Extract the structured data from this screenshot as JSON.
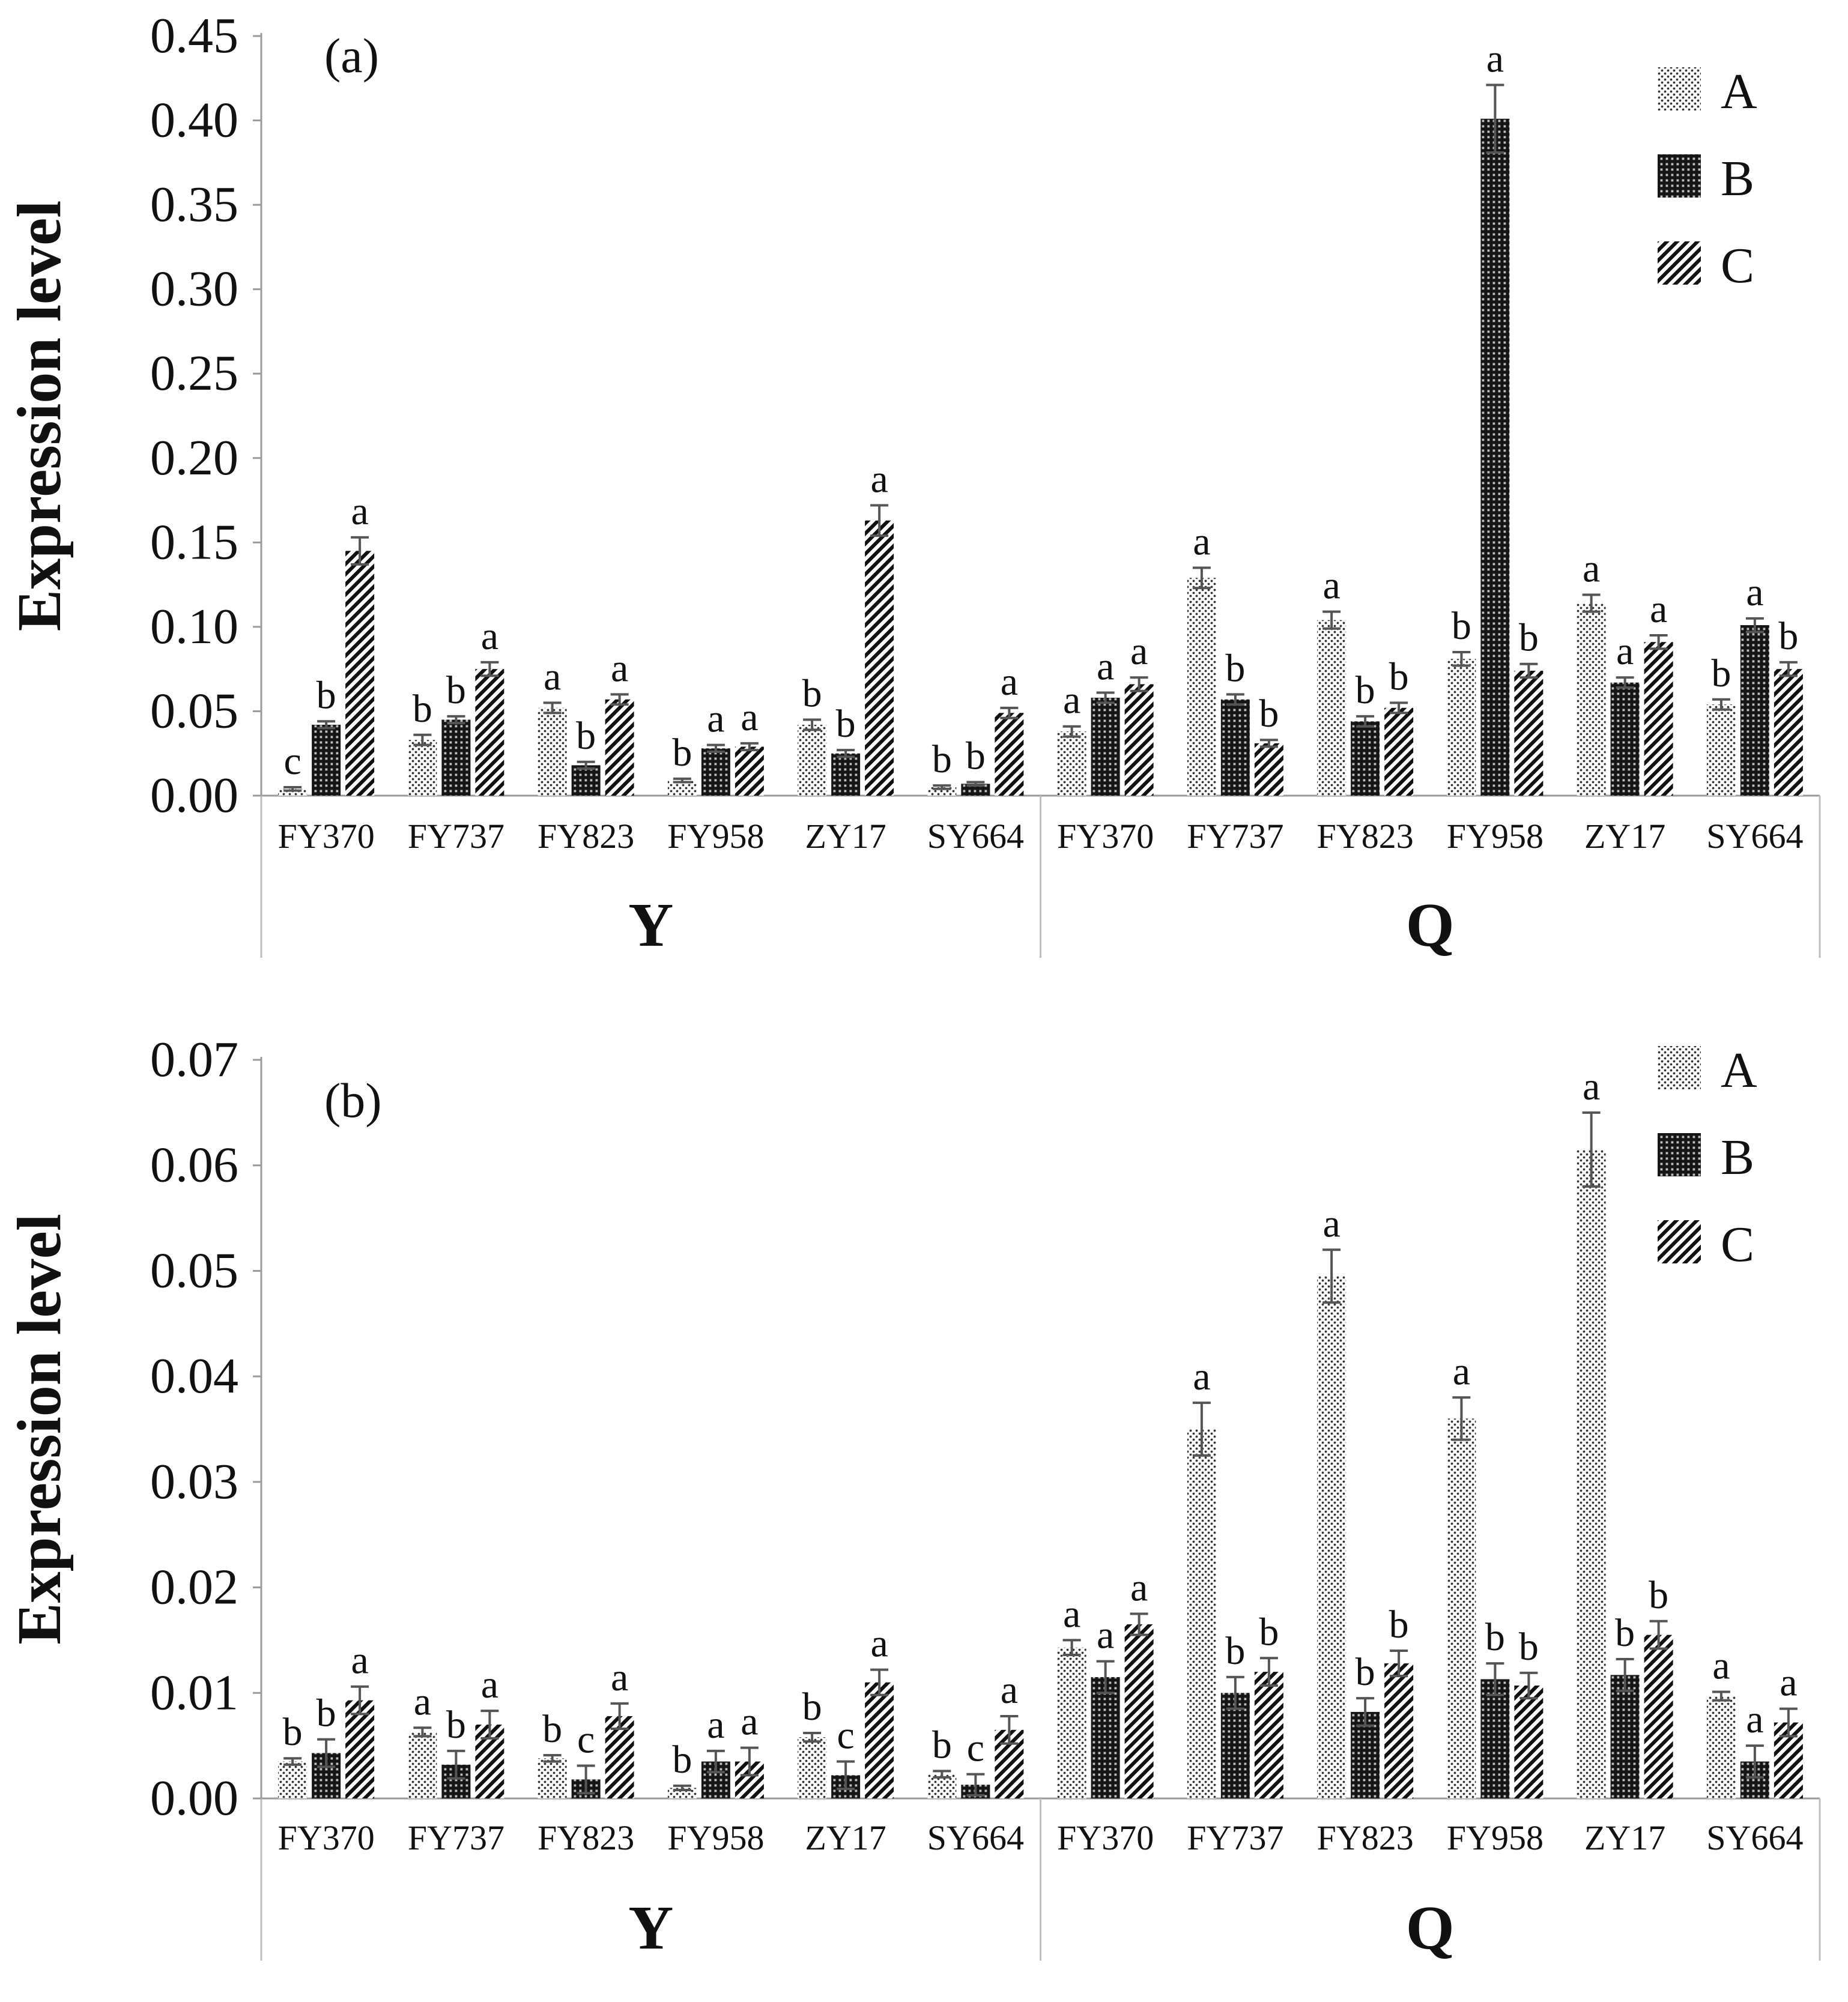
{
  "chart_data": [
    {
      "type": "bar",
      "panel_label": "(a)",
      "ylabel": "Expression level",
      "ylim": [
        0,
        0.45
      ],
      "yticks": [
        "0.00",
        "0.05",
        "0.10",
        "0.15",
        "0.20",
        "0.25",
        "0.30",
        "0.35",
        "0.40",
        "0.45"
      ],
      "groups": [
        "Y",
        "Q"
      ],
      "categories": [
        "FY370",
        "FY737",
        "FY823",
        "FY958",
        "ZY17",
        "SY664",
        "FY370",
        "FY737",
        "FY823",
        "FY958",
        "ZY17",
        "SY664"
      ],
      "series": [
        {
          "name": "A",
          "pattern": "dots",
          "values": [
            0.004,
            0.033,
            0.052,
            0.009,
            0.042,
            0.005,
            0.038,
            0.129,
            0.104,
            0.081,
            0.114,
            0.054
          ],
          "errors": [
            0.001,
            0.003,
            0.003,
            0.001,
            0.003,
            0.001,
            0.003,
            0.006,
            0.005,
            0.004,
            0.005,
            0.003
          ],
          "labels": [
            "c",
            "b",
            "a",
            "b",
            "b",
            "b",
            "a",
            "a",
            "a",
            "b",
            "a",
            "b"
          ]
        },
        {
          "name": "B",
          "pattern": "grid",
          "values": [
            0.042,
            0.045,
            0.018,
            0.028,
            0.025,
            0.007,
            0.058,
            0.057,
            0.044,
            0.401,
            0.067,
            0.101
          ],
          "errors": [
            0.002,
            0.002,
            0.002,
            0.002,
            0.002,
            0.001,
            0.003,
            0.003,
            0.003,
            0.02,
            0.003,
            0.004
          ],
          "labels": [
            "b",
            "b",
            "b",
            "a",
            "b",
            "b",
            "a",
            "b",
            "b",
            "a",
            "a",
            "a"
          ]
        },
        {
          "name": "C",
          "pattern": "hatch",
          "values": [
            0.145,
            0.075,
            0.057,
            0.029,
            0.163,
            0.049,
            0.066,
            0.031,
            0.052,
            0.074,
            0.091,
            0.075
          ],
          "errors": [
            0.008,
            0.004,
            0.003,
            0.002,
            0.009,
            0.003,
            0.004,
            0.002,
            0.003,
            0.004,
            0.004,
            0.004
          ],
          "labels": [
            "a",
            "a",
            "a",
            "a",
            "a",
            "a",
            "a",
            "b",
            "b",
            "b",
            "a",
            "b"
          ]
        }
      ],
      "legend": [
        "A",
        "B",
        "C"
      ],
      "legend_position": "top-right"
    },
    {
      "type": "bar",
      "panel_label": "(b)",
      "ylabel": "Expression level",
      "ylim": [
        0,
        0.07
      ],
      "yticks": [
        "0.00",
        "0.01",
        "0.02",
        "0.03",
        "0.04",
        "0.05",
        "0.06",
        "0.07"
      ],
      "groups": [
        "Y",
        "Q"
      ],
      "categories": [
        "FY370",
        "FY737",
        "FY823",
        "FY958",
        "ZY17",
        "SY664",
        "FY370",
        "FY737",
        "FY823",
        "FY958",
        "ZY17",
        "SY664"
      ],
      "series": [
        {
          "name": "A",
          "pattern": "dots",
          "values": [
            0.0035,
            0.0063,
            0.0038,
            0.001,
            0.0058,
            0.0023,
            0.0143,
            0.035,
            0.0495,
            0.036,
            0.0615,
            0.0097
          ],
          "errors": [
            0.0003,
            0.0004,
            0.0003,
            0.0002,
            0.0004,
            0.0003,
            0.0007,
            0.0025,
            0.0025,
            0.002,
            0.0035,
            0.0004
          ],
          "labels": [
            "b",
            "a",
            "b",
            "b",
            "b",
            "b",
            "a",
            "a",
            "a",
            "a",
            "a",
            "a"
          ]
        },
        {
          "name": "B",
          "pattern": "grid",
          "values": [
            0.0043,
            0.0032,
            0.0018,
            0.0035,
            0.0022,
            0.0013,
            0.0115,
            0.01,
            0.0082,
            0.0113,
            0.0117,
            0.0035
          ],
          "errors": [
            0.0013,
            0.0013,
            0.0013,
            0.001,
            0.0013,
            0.001,
            0.0015,
            0.0015,
            0.0013,
            0.0015,
            0.0015,
            0.0015
          ],
          "labels": [
            "b",
            "b",
            "c",
            "a",
            "c",
            "c",
            "a",
            "b",
            "b",
            "b",
            "b",
            "a"
          ]
        },
        {
          "name": "C",
          "pattern": "hatch",
          "values": [
            0.0093,
            0.007,
            0.0078,
            0.0035,
            0.011,
            0.0065,
            0.0165,
            0.012,
            0.0128,
            0.0107,
            0.0155,
            0.0072
          ],
          "errors": [
            0.0013,
            0.0013,
            0.0012,
            0.0013,
            0.0012,
            0.0013,
            0.001,
            0.0013,
            0.0012,
            0.0012,
            0.0013,
            0.0013
          ],
          "labels": [
            "a",
            "a",
            "a",
            "a",
            "a",
            "a",
            "a",
            "b",
            "b",
            "b",
            "b",
            "a"
          ]
        }
      ],
      "legend": [
        "A",
        "B",
        "C"
      ],
      "legend_position": "top-right"
    }
  ]
}
